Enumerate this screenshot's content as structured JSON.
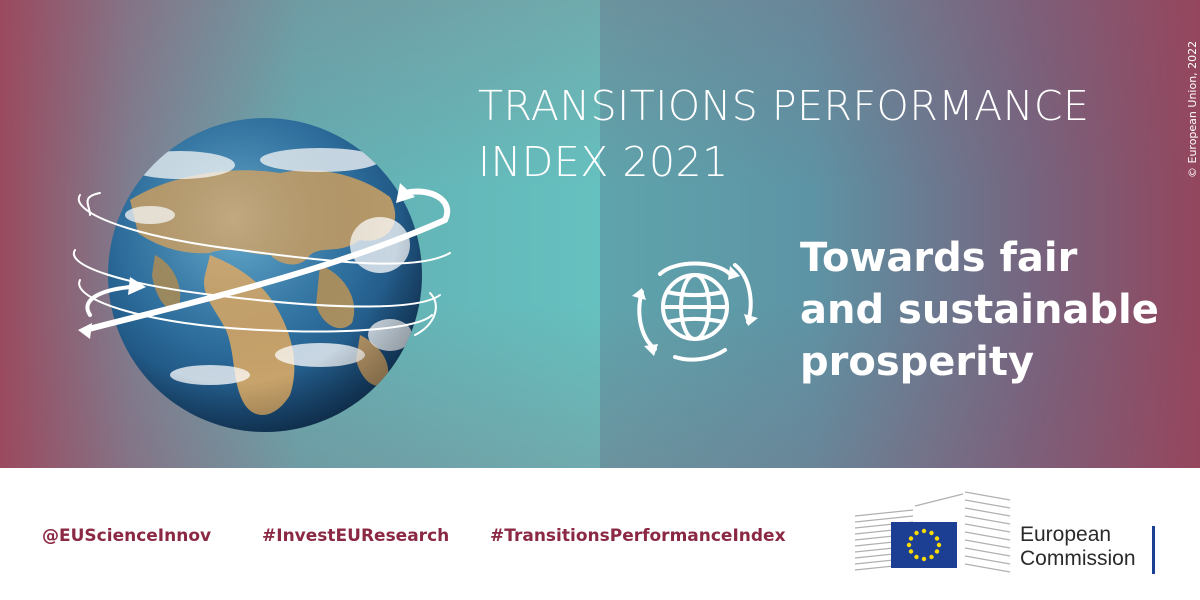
{
  "title": "TRANSITIONS PERFORMANCE\nINDEX 2021",
  "tagline": "Towards fair\nand sustainable\nprosperity",
  "copyright": "© European Union, 2022",
  "footer": {
    "social": [
      "@EUScienceInnov",
      "#InvestEUResearch",
      "#TransitionsPerformanceIndex"
    ],
    "brand": "European\nCommission"
  },
  "colors": {
    "maroon": "#8b2944",
    "teal": "#65c1bf",
    "eu_blue": "#1c3f94",
    "eu_gold": "#ffdd00"
  },
  "icons": [
    "earth-globe-illustration",
    "sustainability-globe-icon",
    "eu-flag-icon"
  ]
}
